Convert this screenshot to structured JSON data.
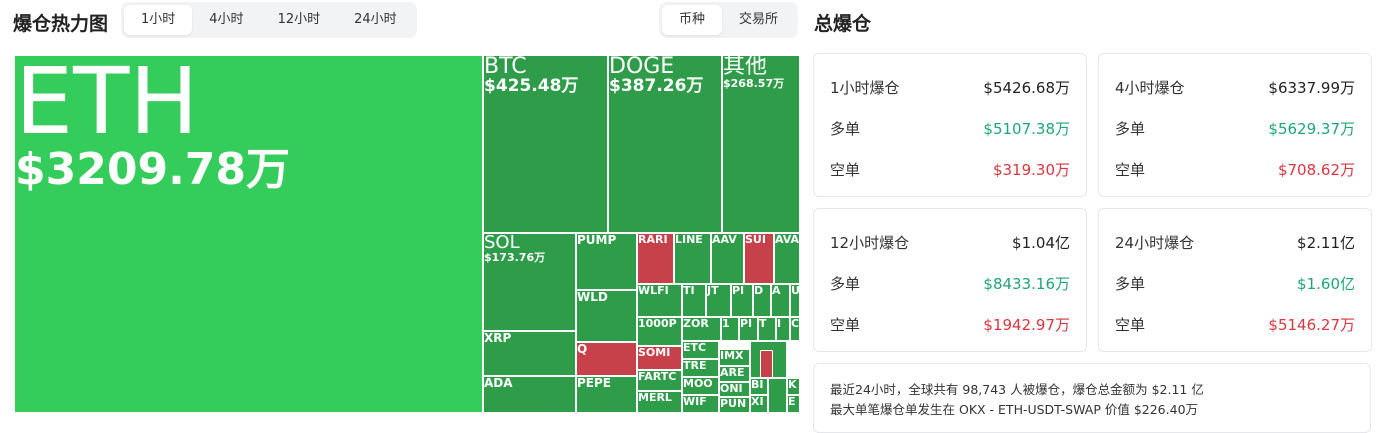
{
  "header": {
    "title": "爆仓热力图",
    "time_tabs": [
      "1小时",
      "4小时",
      "12小时",
      "24小时"
    ],
    "group_tabs": [
      "币种",
      "交易所"
    ]
  },
  "treemap": {
    "tiles": [
      {
        "label": "ETH",
        "value": "$3209.78万"
      },
      {
        "label": "BTC",
        "value": "$425.48万"
      },
      {
        "label": "DOGE",
        "value": "$387.26万"
      },
      {
        "label": "其他",
        "value": "$268.57万"
      },
      {
        "label": "SOL",
        "value": "$173.76万"
      },
      {
        "label": "XRP"
      },
      {
        "label": "ADA"
      },
      {
        "label": "PUMP"
      },
      {
        "label": "WLD"
      },
      {
        "label": "Q"
      },
      {
        "label": "PEPE"
      },
      {
        "label": "RARI"
      },
      {
        "label": "LINE"
      },
      {
        "label": "AAV"
      },
      {
        "label": "SUI"
      },
      {
        "label": "AVA"
      },
      {
        "label": "WLFI"
      },
      {
        "label": "1000P"
      },
      {
        "label": "SOMI"
      },
      {
        "label": "FARTC"
      },
      {
        "label": "MERL"
      },
      {
        "label": "TI"
      },
      {
        "label": "JT"
      },
      {
        "label": "PI"
      },
      {
        "label": "D"
      },
      {
        "label": "A"
      },
      {
        "label": "U"
      },
      {
        "label": "ZOR"
      },
      {
        "label": "1"
      },
      {
        "label": "PI"
      },
      {
        "label": "T"
      },
      {
        "label": "I"
      },
      {
        "label": "C"
      },
      {
        "label": "ETC"
      },
      {
        "label": "TRE"
      },
      {
        "label": "MOO"
      },
      {
        "label": "WIF"
      },
      {
        "label": "IMX"
      },
      {
        "label": "ARE"
      },
      {
        "label": "ONI"
      },
      {
        "label": "PUN"
      },
      {
        "label": "BI"
      },
      {
        "label": "XI"
      },
      {
        "label": "K"
      },
      {
        "label": "E"
      }
    ]
  },
  "summary": {
    "title": "总爆仓",
    "cards": [
      {
        "title": "1小时爆仓",
        "total": "$5426.68万",
        "long_label": "多单",
        "long": "$5107.38万",
        "short_label": "空单",
        "short": "$319.30万"
      },
      {
        "title": "4小时爆仓",
        "total": "$6337.99万",
        "long_label": "多单",
        "long": "$5629.37万",
        "short_label": "空单",
        "short": "$708.62万"
      },
      {
        "title": "12小时爆仓",
        "total": "$1.04亿",
        "long_label": "多单",
        "long": "$8433.16万",
        "short_label": "空单",
        "short": "$1942.97万"
      },
      {
        "title": "24小时爆仓",
        "total": "$2.11亿",
        "long_label": "多单",
        "long": "$1.60亿",
        "short_label": "空单",
        "short": "$5146.27万"
      }
    ],
    "notes": [
      "最近24小时，全球共有 98,743 人被爆仓，爆仓总金额为 $2.11 亿",
      "最大单笔爆仓单发生在 OKX - ETH-USDT-SWAP 价值 $226.40万"
    ]
  }
}
